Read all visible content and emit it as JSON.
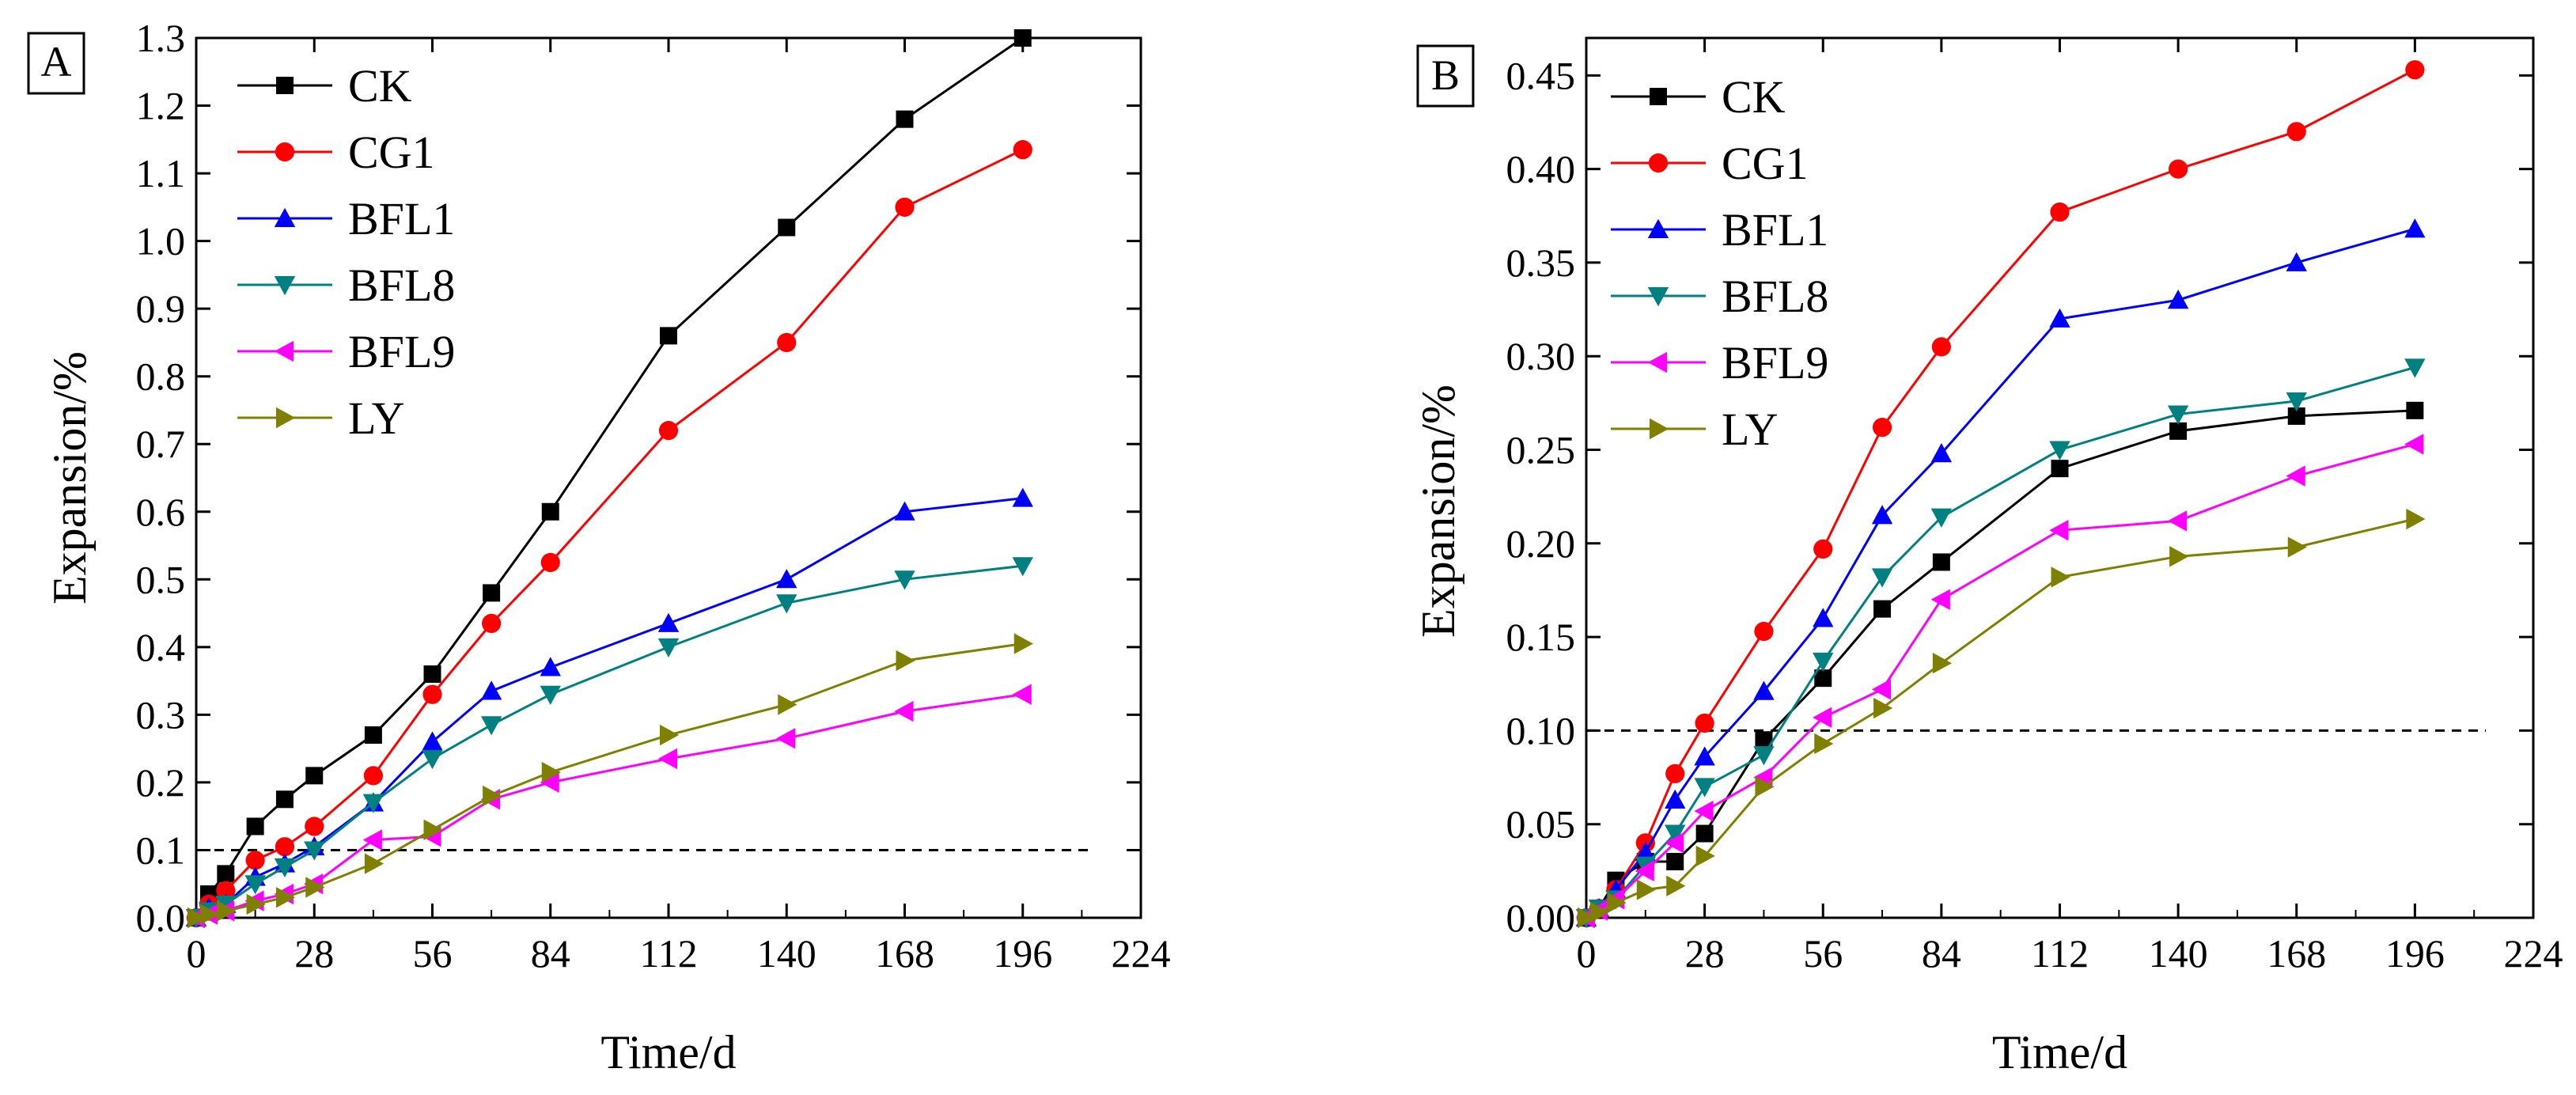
{
  "figure": {
    "panel_a_label": "A",
    "panel_b_label": "B"
  },
  "colors": {
    "CK": "#000000",
    "CG1": "#ff0000",
    "BFL1": "#0000ff",
    "BFL8": "#008080",
    "BFL9": "#ff00ff",
    "LY": "#808000",
    "reference_line": "#000000"
  },
  "chart_data": [
    {
      "panel": "A",
      "type": "line",
      "xlabel": "Time/d",
      "ylabel": "Expansion/%",
      "xlim": [
        0,
        224
      ],
      "ylim": [
        0,
        1.3
      ],
      "xticks": [
        "0",
        "28",
        "56",
        "84",
        "112",
        "140",
        "168",
        "196",
        "224"
      ],
      "yticks": [
        "0.0",
        "0.1",
        "0.2",
        "0.3",
        "0.4",
        "0.5",
        "0.6",
        "0.7",
        "0.8",
        "0.9",
        "1.0",
        "1.1",
        "1.2",
        "1.3"
      ],
      "reference_line_y": 0.1,
      "legend_position": "top-left",
      "x": [
        0,
        3,
        7,
        14,
        21,
        28,
        42,
        56,
        70,
        84,
        112,
        140,
        168,
        196
      ],
      "series": [
        {
          "name": "CK",
          "marker": "square",
          "values": [
            0.0,
            0.035,
            0.065,
            0.135,
            0.175,
            0.21,
            0.27,
            0.36,
            0.48,
            0.6,
            0.86,
            1.02,
            1.18,
            1.3
          ]
        },
        {
          "name": "CG1",
          "marker": "circle",
          "values": [
            0.0,
            0.02,
            0.04,
            0.085,
            0.105,
            0.135,
            0.21,
            0.33,
            0.435,
            0.525,
            0.72,
            0.85,
            1.05,
            1.135
          ]
        },
        {
          "name": "BFL1",
          "marker": "triangle-up",
          "values": [
            0.0,
            0.015,
            0.02,
            0.06,
            0.08,
            0.105,
            0.17,
            0.26,
            0.335,
            0.37,
            0.435,
            0.5,
            0.6,
            0.62
          ]
        },
        {
          "name": "BFL8",
          "marker": "triangle-down",
          "values": [
            0.0,
            0.01,
            0.02,
            0.05,
            0.075,
            0.1,
            0.17,
            0.235,
            0.285,
            0.33,
            0.4,
            0.465,
            0.5,
            0.52
          ]
        },
        {
          "name": "BFL9",
          "marker": "triangle-left",
          "values": [
            0.0,
            0.005,
            0.01,
            0.025,
            0.035,
            0.05,
            0.115,
            0.12,
            0.175,
            0.2,
            0.235,
            0.265,
            0.305,
            0.33
          ]
        },
        {
          "name": "LY",
          "marker": "triangle-right",
          "values": [
            0.0,
            0.005,
            0.01,
            0.02,
            0.03,
            0.045,
            0.08,
            0.13,
            0.18,
            0.215,
            0.27,
            0.315,
            0.38,
            0.405
          ]
        }
      ]
    },
    {
      "panel": "B",
      "type": "line",
      "xlabel": "Time/d",
      "ylabel": "Expansion/%",
      "xlim": [
        0,
        224
      ],
      "ylim": [
        0,
        0.47
      ],
      "xticks": [
        "0",
        "28",
        "56",
        "84",
        "112",
        "140",
        "168",
        "196",
        "224"
      ],
      "yticks": [
        "0.00",
        "0.05",
        "0.10",
        "0.15",
        "0.20",
        "0.25",
        "0.30",
        "0.35",
        "0.40",
        "0.45"
      ],
      "reference_line_y": 0.1,
      "legend_position": "top-left",
      "x": [
        0,
        3,
        7,
        14,
        21,
        28,
        42,
        56,
        70,
        84,
        112,
        140,
        168,
        196
      ],
      "series": [
        {
          "name": "CK",
          "marker": "square",
          "values": [
            0.0,
            0.005,
            0.02,
            0.03,
            0.03,
            0.045,
            0.095,
            0.128,
            0.165,
            0.19,
            0.24,
            0.26,
            0.268,
            0.271
          ]
        },
        {
          "name": "CG1",
          "marker": "circle",
          "values": [
            0.0,
            0.005,
            0.015,
            0.04,
            0.077,
            0.104,
            0.153,
            0.197,
            0.262,
            0.305,
            0.377,
            0.4,
            0.42,
            0.453
          ]
        },
        {
          "name": "BFL1",
          "marker": "triangle-up",
          "values": [
            0.0,
            0.005,
            0.015,
            0.035,
            0.063,
            0.086,
            0.121,
            0.16,
            0.215,
            0.248,
            0.32,
            0.33,
            0.35,
            0.368
          ]
        },
        {
          "name": "BFL8",
          "marker": "triangle-down",
          "values": [
            0.0,
            0.005,
            0.01,
            0.028,
            0.045,
            0.07,
            0.087,
            0.137,
            0.182,
            0.214,
            0.25,
            0.269,
            0.276,
            0.294
          ]
        },
        {
          "name": "BFL9",
          "marker": "triangle-left",
          "values": [
            0.0,
            0.004,
            0.01,
            0.025,
            0.04,
            0.057,
            0.075,
            0.107,
            0.122,
            0.17,
            0.207,
            0.212,
            0.236,
            0.253
          ]
        },
        {
          "name": "LY",
          "marker": "triangle-right",
          "values": [
            0.0,
            0.003,
            0.008,
            0.015,
            0.017,
            0.033,
            0.07,
            0.093,
            0.112,
            0.136,
            0.182,
            0.193,
            0.198,
            0.213
          ]
        }
      ]
    }
  ]
}
